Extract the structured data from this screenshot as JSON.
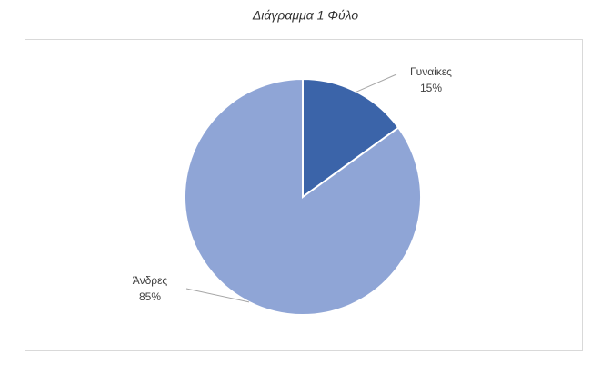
{
  "chart_data": {
    "type": "pie",
    "title": "Διάγραμμα 1 Φύλο",
    "categories": [
      "Γυναίκες",
      "Άνδρες"
    ],
    "values": [
      15,
      85
    ],
    "value_labels": [
      "15%",
      "85%"
    ],
    "colors": [
      "#3b64a9",
      "#8fa5d6"
    ]
  }
}
